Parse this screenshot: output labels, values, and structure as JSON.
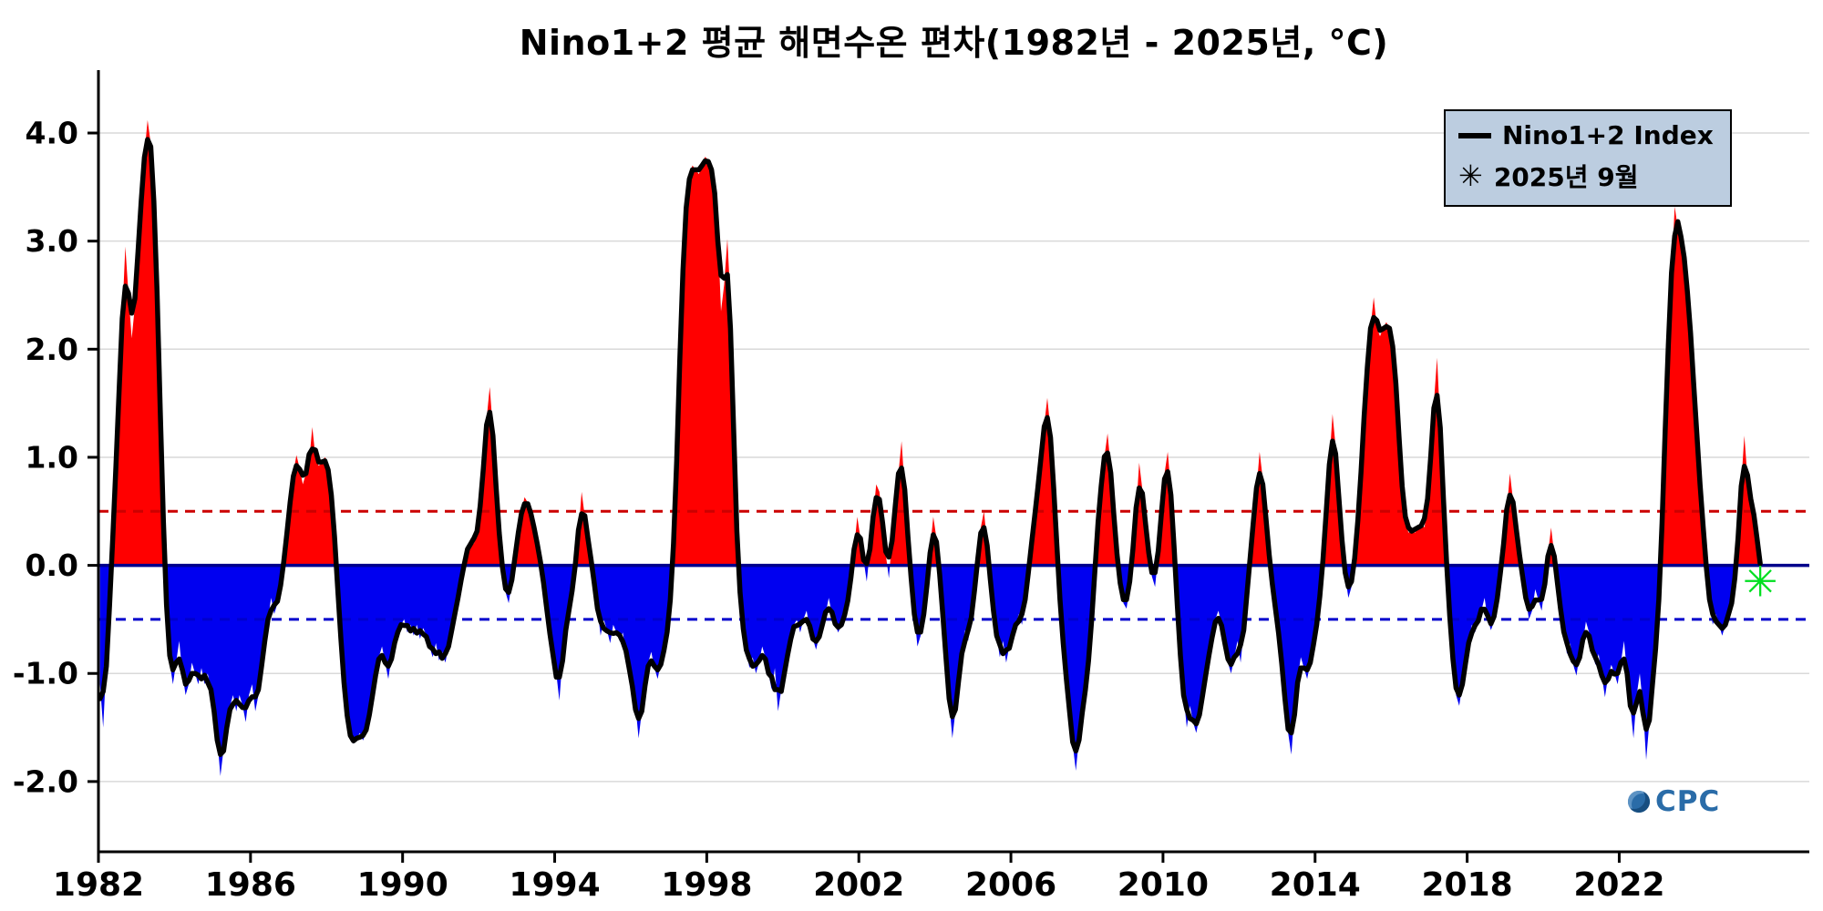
{
  "title": "Nino1+2 평균 해면수온 편차(1982년 - 2025년, °C)",
  "legend": {
    "series_label": "Nino1+2 Index",
    "marker_label": "2025년 9월",
    "marker_symbol": "✳"
  },
  "watermark": {
    "text": "CPC"
  },
  "colors": {
    "warm_fill": "#ff0000",
    "cold_fill": "#0000f0",
    "line": "#000000",
    "zero_line": "#00008b",
    "upper_threshold": "#cc0000",
    "lower_threshold": "#0000cc",
    "marker_green": "#00df20",
    "grid": "#d9d9d9",
    "legend_bg": "#bccde0",
    "watermark_blue": "#2a6ca8"
  },
  "chart_data": {
    "type": "area",
    "title": "Nino1+2 평균 해면수온 편차(1982년 - 2025년, °C)",
    "ylabel": "",
    "xlabel": "",
    "grid": true,
    "legend_position": "top-right",
    "baseline": 0,
    "thresholds": {
      "upper": 0.5,
      "lower": -0.5
    },
    "x_axis": {
      "range": [
        1982,
        2027
      ],
      "ticks": [
        1982,
        1986,
        1990,
        1994,
        1998,
        2002,
        2006,
        2010,
        2014,
        2018,
        2022
      ]
    },
    "y_axis": {
      "range": [
        -2.65,
        4.43
      ],
      "ticks": [
        {
          "v": 4,
          "label": "4.0"
        },
        {
          "v": 3,
          "label": "3.0"
        },
        {
          "v": 2,
          "label": "2.0"
        },
        {
          "v": 1,
          "label": "1.0"
        },
        {
          "v": 0,
          "label": "0.0"
        },
        {
          "v": -1,
          "label": "-1.0"
        },
        {
          "v": -2,
          "label": "-2.0"
        }
      ]
    },
    "marker": {
      "label": "2025년 9월",
      "time": "2025-09",
      "value": -0.15
    },
    "series": [
      {
        "name": "Nino1+2 Index",
        "cadence": "monthly",
        "units": "°C anomaly",
        "values_by_year": [
          {
            "year": 1982,
            "values": [
              -1.1,
              -1.5,
              -0.9,
              -0.4,
              0.2,
              0.9,
              1.6,
              2.3,
              2.95,
              2.5,
              2.1,
              2.4
            ]
          },
          {
            "year": 1983,
            "values": [
              2.9,
              3.4,
              3.8,
              4.12,
              3.9,
              3.6,
              2.6,
              1.4,
              0.3,
              -0.5,
              -0.9,
              -1.1
            ]
          },
          {
            "year": 1984,
            "values": [
              -0.9,
              -0.7,
              -1.0,
              -1.2,
              -1.1,
              -0.9,
              -1.0,
              -1.1,
              -0.95,
              -1.1,
              -1.0,
              -1.15
            ]
          },
          {
            "year": 1985,
            "values": [
              -1.3,
              -1.6,
              -1.95,
              -1.7,
              -1.5,
              -1.3,
              -1.2,
              -1.35,
              -1.2,
              -1.3,
              -1.45,
              -1.2
            ]
          },
          {
            "year": 1986,
            "values": [
              -1.1,
              -1.35,
              -1.2,
              -0.9,
              -0.7,
              -0.5,
              -0.3,
              -0.45,
              -0.35,
              -0.2,
              0.0,
              0.3
            ]
          },
          {
            "year": 1987,
            "values": [
              0.6,
              0.85,
              1.02,
              0.9,
              0.75,
              0.85,
              0.95,
              1.28,
              1.0,
              0.92,
              0.95,
              1.0
            ]
          },
          {
            "year": 1988,
            "values": [
              0.95,
              0.7,
              0.3,
              -0.2,
              -0.7,
              -1.1,
              -1.45,
              -1.62,
              -1.65,
              -1.6,
              -1.55,
              -1.62
            ]
          },
          {
            "year": 1989,
            "values": [
              -1.55,
              -1.4,
              -1.2,
              -1.0,
              -0.85,
              -0.75,
              -0.9,
              -1.05,
              -0.85,
              -0.7,
              -0.6,
              -0.55
            ]
          },
          {
            "year": 1990,
            "values": [
              -0.5,
              -0.62,
              -0.55,
              -0.65,
              -0.55,
              -0.68,
              -0.58,
              -0.65,
              -0.75,
              -0.85,
              -0.72,
              -0.88
            ]
          },
          {
            "year": 1991,
            "values": [
              -0.8,
              -0.9,
              -0.75,
              -0.6,
              -0.45,
              -0.3,
              -0.15,
              0.05,
              0.15,
              0.25,
              0.2,
              0.3
            ]
          },
          {
            "year": 1992,
            "values": [
              0.45,
              0.9,
              1.35,
              1.65,
              1.25,
              0.7,
              0.25,
              -0.05,
              -0.25,
              -0.35,
              -0.15,
              0.1
            ]
          },
          {
            "year": 1993,
            "values": [
              0.3,
              0.5,
              0.63,
              0.58,
              0.5,
              0.35,
              0.2,
              0.05,
              -0.15,
              -0.4,
              -0.65,
              -0.85
            ]
          },
          {
            "year": 1994,
            "values": [
              -1.0,
              -1.25,
              -0.85,
              -0.55,
              -0.4,
              -0.3,
              0.0,
              0.3,
              0.68,
              0.45,
              0.25,
              0.05
            ]
          },
          {
            "year": 1995,
            "values": [
              -0.15,
              -0.4,
              -0.65,
              -0.5,
              -0.6,
              -0.72,
              -0.55,
              -0.62,
              -0.7,
              -0.62,
              -0.8,
              -0.95
            ]
          },
          {
            "year": 1996,
            "values": [
              -1.1,
              -1.3,
              -1.6,
              -1.35,
              -1.1,
              -0.9,
              -0.8,
              -0.95,
              -1.05,
              -0.9,
              -0.8,
              -0.65
            ]
          },
          {
            "year": 1997,
            "values": [
              -0.4,
              0.1,
              0.9,
              1.9,
              2.9,
              3.4,
              3.62,
              3.7,
              3.66,
              3.62,
              3.7,
              3.78
            ]
          },
          {
            "year": 1998,
            "values": [
              3.75,
              3.68,
              3.55,
              3.1,
              2.35,
              2.6,
              3.02,
              2.45,
              1.1,
              0.2,
              -0.35,
              -0.6
            ]
          },
          {
            "year": 1999,
            "values": [
              -0.8,
              -0.95,
              -0.85,
              -1.0,
              -0.9,
              -0.75,
              -0.85,
              -1.0,
              -1.15,
              -0.95,
              -1.35,
              -1.15
            ]
          },
          {
            "year": 2000,
            "values": [
              -1.0,
              -0.85,
              -0.65,
              -0.55,
              -0.5,
              -0.62,
              -0.5,
              -0.42,
              -0.58,
              -0.68,
              -0.78,
              -0.65
            ]
          },
          {
            "year": 2001,
            "values": [
              -0.55,
              -0.45,
              -0.3,
              -0.45,
              -0.55,
              -0.62,
              -0.55,
              -0.48,
              -0.35,
              -0.15,
              0.15,
              0.45
            ]
          },
          {
            "year": 2002,
            "values": [
              0.25,
              0.05,
              -0.15,
              0.15,
              0.45,
              0.75,
              0.68,
              0.4,
              0.1,
              -0.12,
              0.25,
              0.55
            ]
          },
          {
            "year": 2003,
            "values": [
              0.85,
              1.15,
              0.7,
              0.25,
              -0.15,
              -0.45,
              -0.75,
              -0.65,
              -0.45,
              -0.25,
              0.15,
              0.45
            ]
          },
          {
            "year": 2004,
            "values": [
              0.25,
              -0.05,
              -0.45,
              -0.85,
              -1.25,
              -1.6,
              -1.35,
              -1.05,
              -0.8,
              -0.6,
              -0.7,
              -0.5
            ]
          },
          {
            "year": 2005,
            "values": [
              -0.25,
              0.05,
              0.35,
              0.5,
              0.2,
              -0.15,
              -0.45,
              -0.65,
              -0.85,
              -0.7,
              -0.9,
              -0.75
            ]
          },
          {
            "year": 2006,
            "values": [
              -0.65,
              -0.55,
              -0.45,
              -0.55,
              -0.35,
              -0.05,
              0.2,
              0.45,
              0.7,
              1.0,
              1.3,
              1.55
            ]
          },
          {
            "year": 2007,
            "values": [
              1.25,
              0.75,
              0.15,
              -0.35,
              -0.75,
              -1.05,
              -1.35,
              -1.65,
              -1.9,
              -1.6,
              -1.35,
              -1.15
            ]
          },
          {
            "year": 2008,
            "values": [
              -0.95,
              -0.55,
              0.0,
              0.4,
              0.8,
              1.0,
              1.22,
              0.9,
              0.45,
              0.05,
              -0.2,
              -0.35
            ]
          },
          {
            "year": 2009,
            "values": [
              -0.4,
              -0.2,
              0.15,
              0.5,
              0.95,
              0.7,
              0.35,
              0.1,
              -0.1,
              -0.2,
              0.1,
              0.5
            ]
          },
          {
            "year": 2010,
            "values": [
              0.85,
              1.05,
              0.7,
              0.2,
              -0.4,
              -0.9,
              -1.2,
              -1.5,
              -1.3,
              -1.45,
              -1.55,
              -1.4
            ]
          },
          {
            "year": 2011,
            "values": [
              -1.2,
              -1.0,
              -0.85,
              -0.65,
              -0.5,
              -0.42,
              -0.55,
              -0.7,
              -0.9,
              -1.0,
              -0.85,
              -0.7
            ]
          },
          {
            "year": 2012,
            "values": [
              -0.9,
              -0.6,
              -0.3,
              0.1,
              0.4,
              0.7,
              1.05,
              0.8,
              0.4,
              0.1,
              -0.2,
              -0.4
            ]
          },
          {
            "year": 2013,
            "values": [
              -0.6,
              -0.9,
              -1.25,
              -1.55,
              -1.75,
              -1.35,
              -1.05,
              -0.85,
              -0.95,
              -1.05,
              -0.9,
              -0.75
            ]
          },
          {
            "year": 2014,
            "values": [
              -0.55,
              -0.35,
              0.05,
              0.45,
              0.95,
              1.4,
              1.1,
              0.6,
              0.2,
              -0.1,
              -0.3,
              -0.2
            ]
          },
          {
            "year": 2015,
            "values": [
              0.05,
              0.35,
              0.85,
              1.4,
              1.9,
              2.2,
              2.48,
              2.2,
              2.12,
              2.2,
              2.25,
              2.18
            ]
          },
          {
            "year": 2016,
            "values": [
              2.15,
              1.75,
              1.15,
              0.65,
              0.4,
              0.3,
              0.35,
              0.3,
              0.35,
              0.4,
              0.35,
              0.55
            ]
          },
          {
            "year": 2017,
            "values": [
              0.95,
              1.5,
              1.92,
              1.3,
              0.6,
              0.0,
              -0.5,
              -0.9,
              -1.2,
              -1.3,
              -1.1,
              -0.9
            ]
          },
          {
            "year": 2018,
            "values": [
              -0.7,
              -0.55,
              -0.62,
              -0.5,
              -0.42,
              -0.3,
              -0.5,
              -0.6,
              -0.52,
              -0.3,
              -0.1,
              0.2
            ]
          },
          {
            "year": 2019,
            "values": [
              0.5,
              0.85,
              0.6,
              0.3,
              0.1,
              -0.1,
              -0.3,
              -0.5,
              -0.42,
              -0.22,
              -0.32,
              -0.42
            ]
          },
          {
            "year": 2020,
            "values": [
              -0.2,
              0.1,
              0.35,
              0.1,
              -0.2,
              -0.4,
              -0.62,
              -0.82,
              -0.72,
              -0.92,
              -1.02,
              -0.82
            ]
          },
          {
            "year": 2021,
            "values": [
              -0.72,
              -0.52,
              -0.62,
              -0.82,
              -0.92,
              -0.82,
              -1.02,
              -1.22,
              -1.02,
              -0.92,
              -1.0,
              -1.1
            ]
          },
          {
            "year": 2022,
            "values": [
              -0.9,
              -0.7,
              -1.0,
              -1.3,
              -1.6,
              -1.2,
              -1.0,
              -1.3,
              -1.8,
              -1.45,
              -1.05,
              -0.8
            ]
          },
          {
            "year": 2023,
            "values": [
              -0.45,
              0.3,
              1.3,
              2.1,
              2.7,
              3.32,
              3.12,
              3.1,
              2.9,
              2.55,
              2.15,
              1.75
            ]
          },
          {
            "year": 2024,
            "values": [
              1.15,
              0.75,
              0.35,
              -0.05,
              -0.35,
              -0.55,
              -0.45,
              -0.55,
              -0.65,
              -0.55,
              -0.45,
              -0.35
            ]
          },
          {
            "year": 2025,
            "values": [
              -0.25,
              0.25,
              0.75,
              1.2,
              0.8,
              0.5,
              0.55,
              0.35,
              -0.15
            ]
          }
        ]
      }
    ]
  }
}
